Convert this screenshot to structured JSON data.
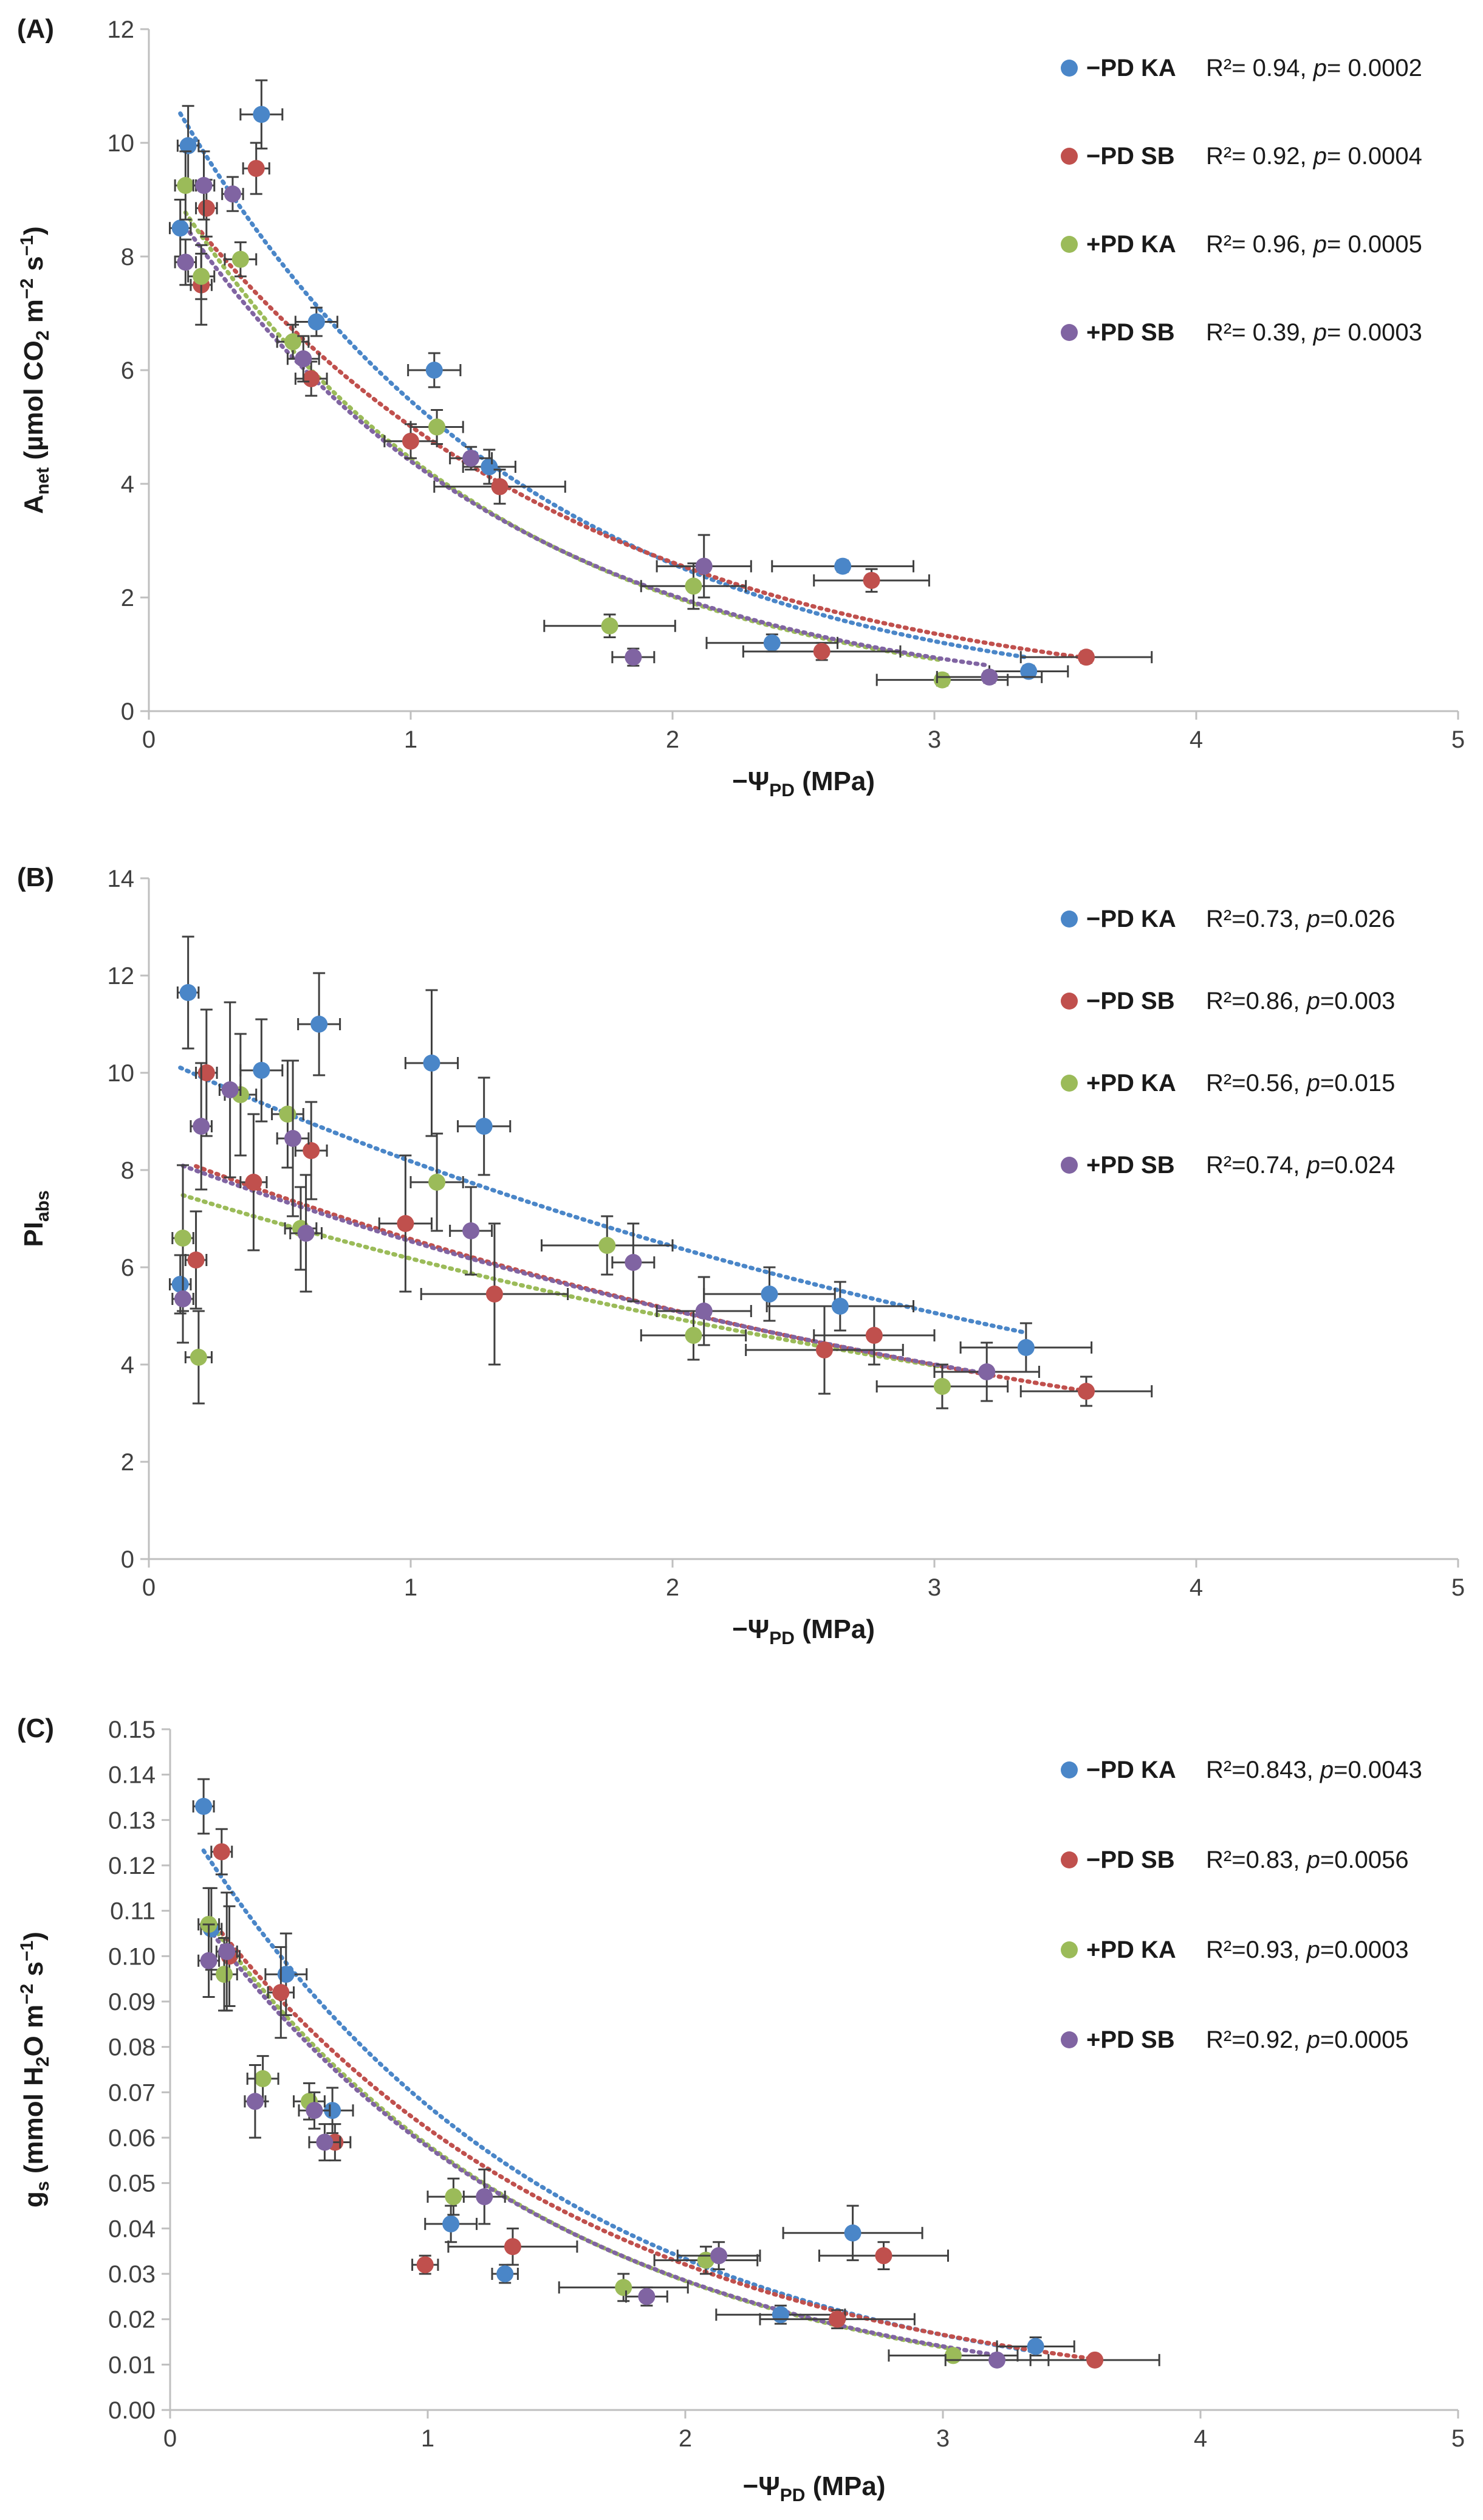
{
  "chart_data": [
    {
      "type": "scatter",
      "panel_label": "(A)",
      "ylabel_main": "A",
      "ylabel_sub": "net",
      "ylabel_rest_a": " (µmol CO",
      "ylabel_rest_sub": "2",
      "ylabel_rest_b": " m",
      "ylabel_exp1": "−2",
      "ylabel_rest_c": " s",
      "ylabel_exp2": "−1",
      "ylabel_rest_d": ")",
      "xlabel_main": "−Ψ",
      "xlabel_sub": "PD",
      "xlabel_rest": " (MPa)",
      "xlim": [
        0,
        5
      ],
      "ylim": [
        0,
        12
      ],
      "xticks": [
        0,
        1,
        2,
        3,
        4,
        5
      ],
      "yticks": [
        0,
        2,
        4,
        6,
        8,
        10,
        12
      ],
      "yfmt": 0,
      "series": [
        {
          "name": "−PD KA",
          "r2": "R²= 0.94, ",
          "p_label": "p",
          "p_value": "= 0.0002",
          "color": "#4a86c8",
          "points": [
            [
              0.12,
              8.5,
              0.04,
              0.5
            ],
            [
              0.15,
              9.95,
              0.04,
              0.7
            ],
            [
              0.43,
              10.5,
              0.08,
              0.6
            ],
            [
              0.64,
              6.85,
              0.08,
              0.25
            ],
            [
              1.09,
              6.0,
              0.1,
              0.3
            ],
            [
              1.3,
              4.3,
              0.1,
              0.3
            ],
            [
              2.38,
              1.2,
              0.25,
              0.15
            ],
            [
              2.65,
              2.55,
              0.27,
              0.1
            ],
            [
              3.36,
              0.7,
              0.15,
              0.1
            ]
          ],
          "trend": {
            "a": 11.5,
            "b": 0.745
          }
        },
        {
          "name": "−PD SB",
          "r2": "R²= 0.92, ",
          "p_label": "p",
          "p_value": "= 0.0004",
          "color": "#c0504d",
          "points": [
            [
              0.2,
              7.5,
              0.04,
              0.7
            ],
            [
              0.22,
              8.85,
              0.04,
              0.5
            ],
            [
              0.41,
              9.55,
              0.05,
              0.45
            ],
            [
              0.62,
              5.85,
              0.06,
              0.3
            ],
            [
              1.0,
              4.75,
              0.1,
              0.3
            ],
            [
              1.34,
              3.95,
              0.25,
              0.3
            ],
            [
              2.57,
              1.05,
              0.3,
              0.15
            ],
            [
              2.76,
              2.3,
              0.22,
              0.2
            ],
            [
              3.58,
              0.95,
              0.25,
              0.1
            ]
          ],
          "trend": {
            "a": 9.6,
            "b": 0.65
          }
        },
        {
          "name": "+PD KA",
          "r2": "R²= 0.96, ",
          "p_label": "p",
          "p_value": "= 0.0005",
          "color": "#9bbb59",
          "points": [
            [
              0.14,
              9.25,
              0.04,
              0.6
            ],
            [
              0.2,
              7.65,
              0.05,
              0.4
            ],
            [
              0.35,
              7.95,
              0.06,
              0.3
            ],
            [
              0.55,
              6.5,
              0.06,
              0.3
            ],
            [
              1.1,
              5.0,
              0.1,
              0.3
            ],
            [
              1.76,
              1.5,
              0.25,
              0.2
            ],
            [
              2.08,
              2.2,
              0.2,
              0.4
            ],
            [
              3.03,
              0.55,
              0.25,
              0.1
            ]
          ],
          "trend": {
            "a": 9.8,
            "b": 0.79
          }
        },
        {
          "name": "+PD SB",
          "r2": "R²= 0.39, ",
          "p_label": "p",
          "p_value": "= 0.0003",
          "color": "#8064a2",
          "points": [
            [
              0.14,
              7.9,
              0.04,
              0.4
            ],
            [
              0.21,
              9.25,
              0.04,
              0.6
            ],
            [
              0.32,
              9.1,
              0.04,
              0.3
            ],
            [
              0.59,
              6.2,
              0.06,
              0.4
            ],
            [
              1.23,
              4.45,
              0.08,
              0.2
            ],
            [
              1.85,
              0.95,
              0.08,
              0.15
            ],
            [
              2.12,
              2.55,
              0.18,
              0.55
            ],
            [
              3.21,
              0.6,
              0.2,
              0.1
            ]
          ],
          "trend": {
            "a": 9.5,
            "b": 0.77
          }
        }
      ]
    },
    {
      "type": "scatter",
      "panel_label": "(B)",
      "ylabel_main": "PI",
      "ylabel_sub": "abs",
      "xlabel_main": "−Ψ",
      "xlabel_sub": "PD",
      "xlabel_rest": " (MPa)",
      "xlim": [
        0,
        5
      ],
      "ylim": [
        0,
        14
      ],
      "xticks": [
        0,
        1,
        2,
        3,
        4,
        5
      ],
      "yticks": [
        0,
        2,
        4,
        6,
        8,
        10,
        12,
        14
      ],
      "yfmt": 0,
      "series": [
        {
          "name": "−PD KA",
          "r2": "R²=0.73, ",
          "p_label": "p",
          "p_value": "=0.026",
          "color": "#4a86c8",
          "points": [
            [
              0.12,
              5.65,
              0.04,
              0.6
            ],
            [
              0.15,
              11.65,
              0.04,
              1.15
            ],
            [
              0.43,
              10.05,
              0.08,
              1.05
            ],
            [
              0.65,
              11.0,
              0.08,
              1.05
            ],
            [
              1.08,
              10.2,
              0.1,
              1.5
            ],
            [
              1.28,
              8.9,
              0.1,
              1.0
            ],
            [
              2.37,
              5.45,
              0.25,
              0.55
            ],
            [
              2.64,
              5.2,
              0.28,
              0.5
            ],
            [
              3.35,
              4.35,
              0.25,
              0.5
            ]
          ],
          "trend": {
            "a": 10.4,
            "b": 0.24
          }
        },
        {
          "name": "−PD SB",
          "r2": "R²=0.86, ",
          "p_label": "p",
          "p_value": "=0.003",
          "color": "#c0504d",
          "points": [
            [
              0.18,
              6.15,
              0.04,
              1.0
            ],
            [
              0.22,
              10.0,
              0.04,
              1.3
            ],
            [
              0.4,
              7.75,
              0.05,
              1.4
            ],
            [
              0.62,
              8.4,
              0.06,
              1.0
            ],
            [
              0.98,
              6.9,
              0.1,
              1.4
            ],
            [
              1.32,
              5.45,
              0.28,
              1.45
            ],
            [
              2.58,
              4.3,
              0.3,
              0.9
            ],
            [
              2.77,
              4.6,
              0.23,
              0.6
            ],
            [
              3.58,
              3.45,
              0.25,
              0.3
            ]
          ],
          "trend": {
            "a": 8.45,
            "b": 0.25
          }
        },
        {
          "name": "+PD KA",
          "r2": "R²=0.56, ",
          "p_label": "p",
          "p_value": "=0.015",
          "color": "#9bbb59",
          "points": [
            [
              0.13,
              6.6,
              0.04,
              1.5
            ],
            [
              0.19,
              4.15,
              0.05,
              0.95
            ],
            [
              0.35,
              9.55,
              0.06,
              1.25
            ],
            [
              0.53,
              9.15,
              0.06,
              1.1
            ],
            [
              0.58,
              6.8,
              0.06,
              0.85
            ],
            [
              1.1,
              7.75,
              0.1,
              1.0
            ],
            [
              1.75,
              6.45,
              0.25,
              0.6
            ],
            [
              2.08,
              4.6,
              0.2,
              0.5
            ],
            [
              3.03,
              3.55,
              0.25,
              0.45
            ]
          ],
          "trend": {
            "a": 7.7,
            "b": 0.22
          }
        },
        {
          "name": "+PD SB",
          "r2": "R²=0.74, ",
          "p_label": "p",
          "p_value": "=0.024",
          "color": "#8064a2",
          "points": [
            [
              0.13,
              5.35,
              0.04,
              0.9
            ],
            [
              0.2,
              8.9,
              0.04,
              1.3
            ],
            [
              0.31,
              9.65,
              0.04,
              1.8
            ],
            [
              0.55,
              8.65,
              0.06,
              1.6
            ],
            [
              0.6,
              6.7,
              0.06,
              1.2
            ],
            [
              1.23,
              6.75,
              0.08,
              0.9
            ],
            [
              1.85,
              6.1,
              0.08,
              0.8
            ],
            [
              2.12,
              5.1,
              0.18,
              0.7
            ],
            [
              3.2,
              3.85,
              0.2,
              0.6
            ]
          ],
          "trend": {
            "a": 8.35,
            "b": 0.245
          }
        }
      ]
    },
    {
      "type": "scatter",
      "panel_label": "(C)",
      "ylabel_main": "g",
      "ylabel_sub": "s",
      "ylabel_rest_a": " (mmol H",
      "ylabel_rest_sub": "2",
      "ylabel_rest_b": "O m",
      "ylabel_exp1": "−2",
      "ylabel_rest_c": " s",
      "ylabel_exp2": "−1",
      "ylabel_rest_d": ")",
      "xlabel_main": "−Ψ",
      "xlabel_sub": "PD",
      "xlabel_rest": " (MPa)",
      "xlim": [
        0,
        5
      ],
      "ylim": [
        0,
        0.15
      ],
      "xticks": [
        0,
        1,
        2,
        3,
        4,
        5
      ],
      "yticks": [
        0,
        0.01,
        0.02,
        0.03,
        0.04,
        0.05,
        0.06,
        0.07,
        0.08,
        0.09,
        0.1,
        0.11,
        0.12,
        0.13,
        0.14,
        0.15
      ],
      "yfmt": 2,
      "series": [
        {
          "name": "−PD KA",
          "r2": "R²=0.843, ",
          "p_label": "p",
          "p_value": "=0.0043",
          "color": "#4a86c8",
          "points": [
            [
              0.13,
              0.133,
              0.04,
              0.006
            ],
            [
              0.16,
              0.106,
              0.04,
              0.009
            ],
            [
              0.45,
              0.096,
              0.08,
              0.009
            ],
            [
              0.63,
              0.066,
              0.08,
              0.005
            ],
            [
              1.09,
              0.041,
              0.1,
              0.004
            ],
            [
              1.3,
              0.03,
              0.05,
              0.002
            ],
            [
              2.37,
              0.021,
              0.25,
              0.002
            ],
            [
              2.65,
              0.039,
              0.27,
              0.006
            ],
            [
              3.36,
              0.014,
              0.15,
              0.002
            ]
          ],
          "trend": {
            "a": 0.135,
            "b": 0.7
          }
        },
        {
          "name": "−PD SB",
          "r2": "R²=0.83, ",
          "p_label": "p",
          "p_value": "=0.0056",
          "color": "#c0504d",
          "points": [
            [
              0.2,
              0.123,
              0.04,
              0.005
            ],
            [
              0.23,
              0.1,
              0.04,
              0.011
            ],
            [
              0.43,
              0.092,
              0.05,
              0.01
            ],
            [
              0.64,
              0.059,
              0.06,
              0.004
            ],
            [
              0.99,
              0.032,
              0.05,
              0.002
            ],
            [
              1.33,
              0.036,
              0.25,
              0.004
            ],
            [
              2.59,
              0.02,
              0.3,
              0.002
            ],
            [
              2.77,
              0.034,
              0.25,
              0.003
            ],
            [
              3.59,
              0.011,
              0.25,
              0.001
            ]
          ],
          "trend": {
            "a": 0.12,
            "b": 0.66
          }
        },
        {
          "name": "+PD KA",
          "r2": "R²=0.93, ",
          "p_label": "p",
          "p_value": "=0.0003",
          "color": "#9bbb59",
          "points": [
            [
              0.15,
              0.107,
              0.04,
              0.008
            ],
            [
              0.21,
              0.096,
              0.05,
              0.008
            ],
            [
              0.36,
              0.073,
              0.06,
              0.005
            ],
            [
              0.54,
              0.068,
              0.06,
              0.004
            ],
            [
              1.1,
              0.047,
              0.1,
              0.004
            ],
            [
              1.76,
              0.027,
              0.25,
              0.003
            ],
            [
              2.08,
              0.033,
              0.2,
              0.003
            ],
            [
              3.04,
              0.012,
              0.25,
              0.001
            ]
          ],
          "trend": {
            "a": 0.12,
            "b": 0.72
          }
        },
        {
          "name": "+PD SB",
          "r2": "R²=0.92, ",
          "p_label": "p",
          "p_value": "=0.0005",
          "color": "#8064a2",
          "points": [
            [
              0.15,
              0.099,
              0.04,
              0.008
            ],
            [
              0.22,
              0.101,
              0.04,
              0.013
            ],
            [
              0.33,
              0.068,
              0.04,
              0.008
            ],
            [
              0.56,
              0.066,
              0.06,
              0.004
            ],
            [
              0.6,
              0.059,
              0.06,
              0.004
            ],
            [
              1.22,
              0.047,
              0.08,
              0.006
            ],
            [
              1.85,
              0.025,
              0.08,
              0.002
            ],
            [
              2.13,
              0.034,
              0.16,
              0.003
            ],
            [
              3.21,
              0.011,
              0.2,
              0.001
            ]
          ],
          "trend": {
            "a": 0.118,
            "b": 0.71
          }
        }
      ]
    }
  ]
}
